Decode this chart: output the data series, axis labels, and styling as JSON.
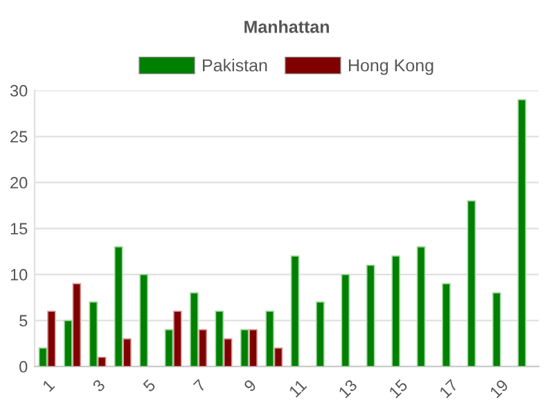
{
  "chart_data": {
    "type": "bar",
    "title": "Manhattan",
    "categories": [
      "1",
      null,
      "3",
      null,
      "5",
      null,
      "7",
      null,
      "9",
      null,
      "11",
      null,
      "13",
      null,
      "15",
      null,
      "17",
      null,
      "19",
      null
    ],
    "series": [
      {
        "name": "Pakistan",
        "color": "#008000",
        "values": [
          2,
          5,
          7,
          13,
          10,
          4,
          8,
          6,
          4,
          6,
          12,
          7,
          10,
          11,
          12,
          13,
          9,
          18,
          8,
          29
        ]
      },
      {
        "name": "Hong Kong",
        "color": "#800000",
        "values": [
          6,
          9,
          1,
          3,
          null,
          6,
          4,
          3,
          4,
          2,
          null,
          null,
          null,
          null,
          null,
          null,
          null,
          null,
          null,
          null
        ]
      }
    ],
    "ylim": [
      0,
      30
    ],
    "yticks": [
      0,
      5,
      10,
      15,
      20,
      25,
      30
    ],
    "grid": "y",
    "legend": "top"
  }
}
